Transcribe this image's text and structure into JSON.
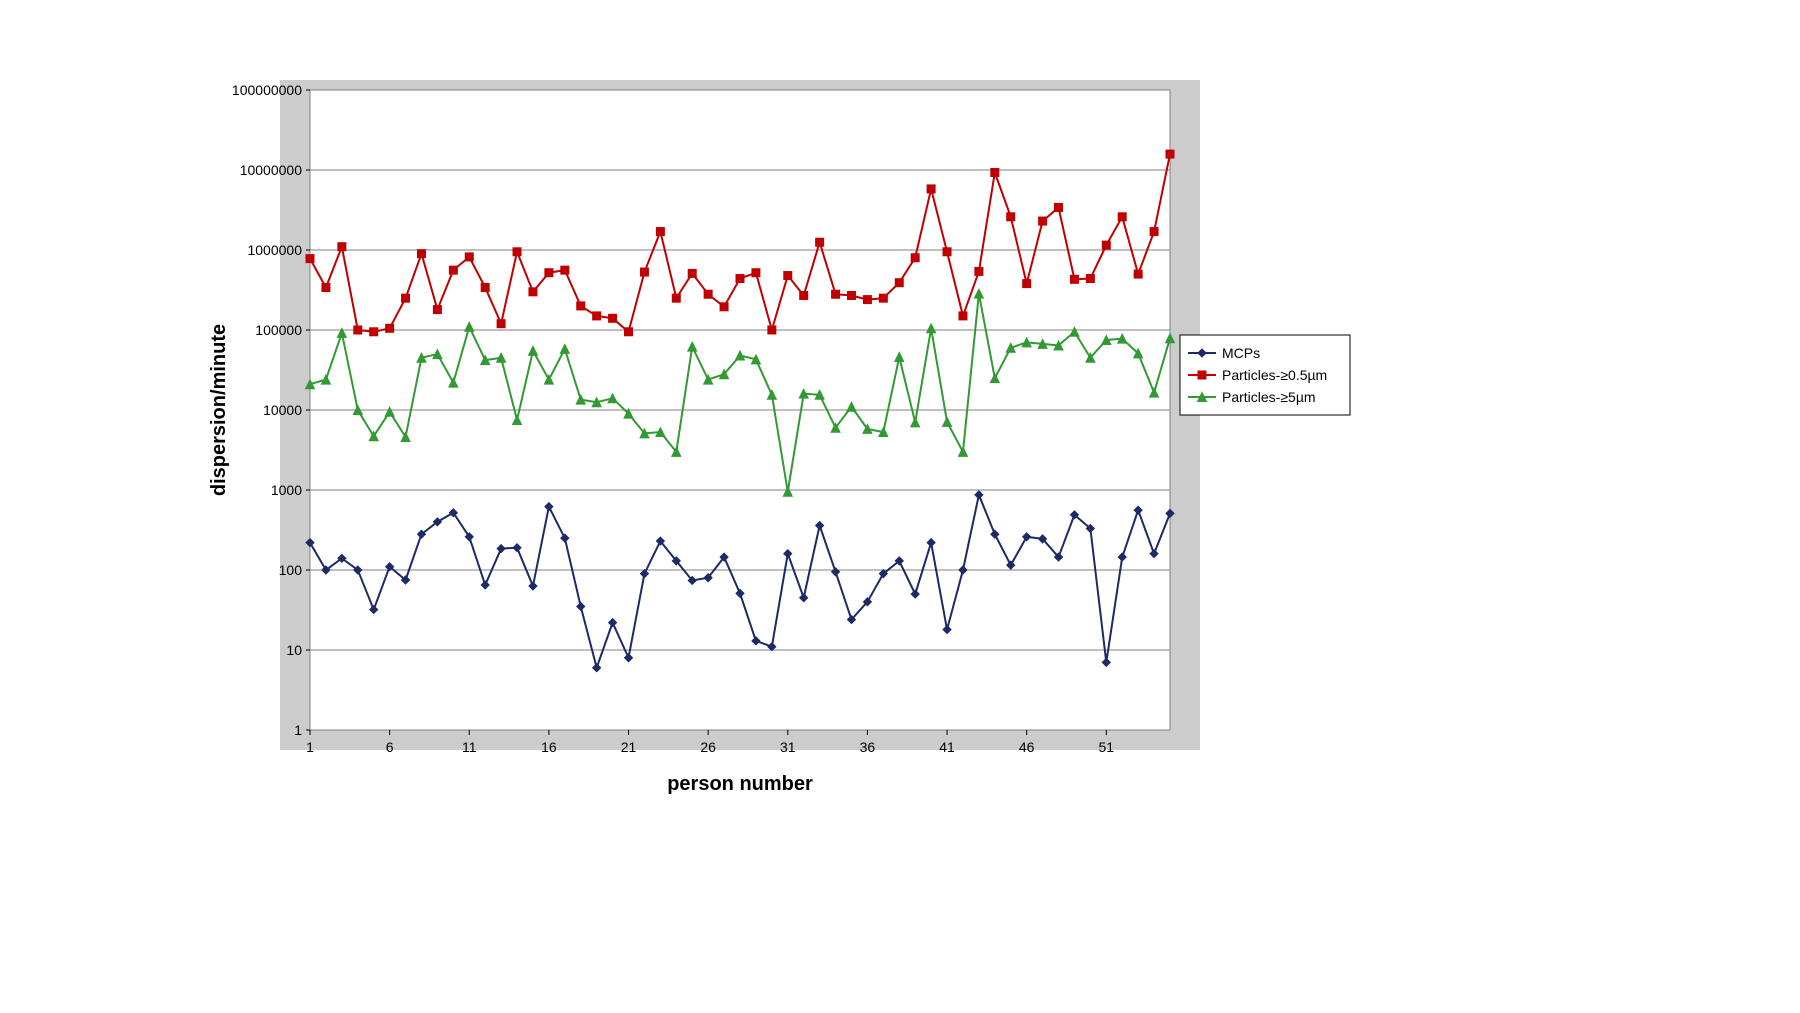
{
  "chart": {
    "type": "line-scatter-log",
    "x_axis": {
      "label": "person number",
      "label_fontsize": 20,
      "label_fontweight": "bold",
      "min": 1,
      "max": 55,
      "tick_start": 1,
      "tick_step": 5,
      "tick_fontsize": 14
    },
    "y_axis": {
      "label": "dispersion/minute",
      "label_fontsize": 20,
      "label_fontweight": "bold",
      "min_exp": 0,
      "max_exp": 8,
      "tick_fontsize": 14,
      "tick_labels": [
        "1",
        "10",
        "100",
        "1000",
        "10000",
        "100000",
        "1000000",
        "10000000",
        "100000000"
      ]
    },
    "plot_background": "#ffffff",
    "outer_background": "#cccccc",
    "grid_color": "#808080",
    "grid_width": 1,
    "border_color": "#808080",
    "series": [
      {
        "name": "MCPs",
        "color": "#1c2a66",
        "marker": "diamond",
        "marker_size": 8,
        "line_width": 2,
        "values": [
          220,
          100,
          140,
          100,
          32,
          110,
          75,
          280,
          400,
          520,
          260,
          65,
          185,
          190,
          63,
          620,
          250,
          35,
          6,
          22,
          8,
          90,
          230,
          130,
          74,
          80,
          145,
          51,
          13,
          11,
          160,
          45,
          360,
          95,
          24,
          40,
          90,
          130,
          50,
          220,
          18,
          100,
          870,
          280,
          115,
          260,
          245,
          145,
          490,
          330,
          7,
          145,
          560,
          160,
          510
        ]
      },
      {
        "name": "Particles-≥0.5µm",
        "color": "#c00000",
        "marker": "square",
        "marker_size": 8,
        "line_width": 2,
        "values": [
          780000,
          340000,
          1100000,
          100000,
          95000,
          105000,
          250000,
          900000,
          180000,
          560000,
          820000,
          340000,
          120000,
          950000,
          300000,
          520000,
          560000,
          200000,
          150000,
          140000,
          95000,
          530000,
          1700000,
          250000,
          510000,
          280000,
          195000,
          440000,
          520000,
          100000,
          480000,
          270000,
          1250000,
          280000,
          270000,
          240000,
          250000,
          390000,
          800000,
          5800000,
          950000,
          150000,
          540000,
          9300000,
          2600000,
          380000,
          2300000,
          3400000,
          430000,
          440000,
          1150000,
          2600000,
          500000,
          1700000,
          15800000
        ]
      },
      {
        "name": "Particles-≥5µm",
        "color": "#339933",
        "marker": "triangle",
        "marker_size": 9,
        "line_width": 2,
        "values": [
          21000,
          24000,
          92000,
          10000,
          4700,
          9500,
          4600,
          45000,
          50000,
          22000,
          110000,
          42000,
          45000,
          7500,
          55000,
          24000,
          58000,
          13500,
          12500,
          14000,
          9000,
          5100,
          5300,
          3000,
          62000,
          24000,
          28000,
          48000,
          43000,
          15500,
          950,
          16000,
          15500,
          6000,
          11000,
          5800,
          5300,
          46000,
          7000,
          105000,
          7100,
          3000,
          285000,
          25000,
          60000,
          70000,
          67000,
          64000,
          95000,
          45000,
          75000,
          78000,
          51000,
          16500,
          79000
        ]
      }
    ],
    "legend": {
      "x_offset": 870,
      "y_offset": 245,
      "fontsize": 14,
      "border_color": "#000000",
      "background": "#ffffff"
    }
  }
}
